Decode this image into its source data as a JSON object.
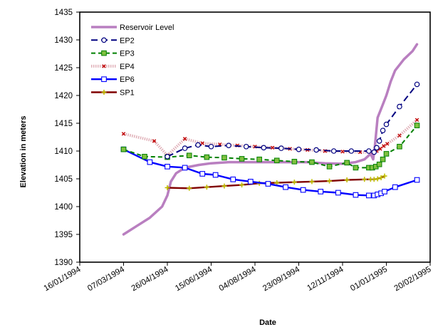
{
  "chart_data": {
    "type": "line",
    "xlabel": "Date",
    "ylabel": "Elevation in meters",
    "ylim": [
      1390,
      1435
    ],
    "y_ticks": [
      "1390",
      "1395",
      "1400",
      "1405",
      "1410",
      "1415",
      "1420",
      "1425",
      "1430",
      "1435"
    ],
    "xlim": [
      "1994-01-16",
      "1995-02-20"
    ],
    "x_ticks": [
      "16/01/1994",
      "07/03/1994",
      "26/04/1994",
      "15/06/1994",
      "04/08/1994",
      "23/09/1994",
      "12/11/1994",
      "01/01/1995",
      "20/02/1995"
    ],
    "grid": false,
    "legend_position": "top-left inside",
    "series": [
      {
        "name": "Reservoir Level",
        "color": "#b97fc0",
        "style": "thick-solid",
        "marker": "none",
        "points": [
          [
            "1994-03-07",
            1395.0
          ],
          [
            "1994-03-22",
            1396.5
          ],
          [
            "1994-04-06",
            1398.0
          ],
          [
            "1994-04-20",
            1400.0
          ],
          [
            "1994-04-26",
            1402.0
          ],
          [
            "1994-04-30",
            1404.5
          ],
          [
            "1994-05-06",
            1406.0
          ],
          [
            "1994-05-16",
            1407.0
          ],
          [
            "1994-06-01",
            1407.5
          ],
          [
            "1994-06-15",
            1407.8
          ],
          [
            "1994-07-05",
            1408.0
          ],
          [
            "1994-08-04",
            1408.0
          ],
          [
            "1994-09-03",
            1408.0
          ],
          [
            "1994-10-03",
            1408.0
          ],
          [
            "1994-10-23",
            1407.8
          ],
          [
            "1994-11-12",
            1407.7
          ],
          [
            "1994-11-27",
            1408.0
          ],
          [
            "1994-12-07",
            1408.5
          ],
          [
            "1994-12-14",
            1409.5
          ],
          [
            "1994-12-17",
            1408.5
          ],
          [
            "1994-12-19",
            1411.0
          ],
          [
            "1994-12-22",
            1416.0
          ],
          [
            "1994-12-27",
            1418.0
          ],
          [
            "1995-01-01",
            1420.0
          ],
          [
            "1995-01-06",
            1422.5
          ],
          [
            "1995-01-11",
            1424.5
          ],
          [
            "1995-01-21",
            1426.5
          ],
          [
            "1995-01-31",
            1428.0
          ],
          [
            "1995-02-05",
            1429.2
          ]
        ]
      },
      {
        "name": "EP2",
        "color": "#000080",
        "style": "long-dash",
        "marker": "open-circle",
        "points": [
          [
            "1994-04-26",
            1409.0
          ],
          [
            "1994-05-16",
            1410.5
          ],
          [
            "1994-05-31",
            1411.1
          ],
          [
            "1994-06-15",
            1410.8
          ],
          [
            "1994-07-05",
            1411.0
          ],
          [
            "1994-07-25",
            1410.8
          ],
          [
            "1994-08-14",
            1410.6
          ],
          [
            "1994-09-03",
            1410.5
          ],
          [
            "1994-09-23",
            1410.3
          ],
          [
            "1994-10-13",
            1410.2
          ],
          [
            "1994-11-02",
            1410.0
          ],
          [
            "1994-11-22",
            1410.0
          ],
          [
            "1994-12-12",
            1410.0
          ],
          [
            "1994-12-18",
            1409.8
          ],
          [
            "1994-12-21",
            1410.6
          ],
          [
            "1994-12-24",
            1411.8
          ],
          [
            "1994-12-28",
            1413.7
          ],
          [
            "1995-01-01",
            1414.8
          ],
          [
            "1995-01-16",
            1418.0
          ],
          [
            "1995-02-05",
            1422.0
          ]
        ]
      },
      {
        "name": "EP3",
        "color": "#008000",
        "style": "dash",
        "marker": "filled-square",
        "marker_color": "#80c040",
        "points": [
          [
            "1994-03-07",
            1410.3
          ],
          [
            "1994-03-31",
            1409.0
          ],
          [
            "1994-04-26",
            1408.9
          ],
          [
            "1994-05-21",
            1409.2
          ],
          [
            "1994-06-10",
            1408.9
          ],
          [
            "1994-06-30",
            1408.8
          ],
          [
            "1994-07-20",
            1408.6
          ],
          [
            "1994-08-09",
            1408.5
          ],
          [
            "1994-08-29",
            1408.3
          ],
          [
            "1994-09-18",
            1408.1
          ],
          [
            "1994-10-08",
            1408.0
          ],
          [
            "1994-10-28",
            1407.2
          ],
          [
            "1994-11-17",
            1407.9
          ],
          [
            "1994-11-27",
            1407.0
          ],
          [
            "1994-12-12",
            1407.0
          ],
          [
            "1994-12-16",
            1407.0
          ],
          [
            "1994-12-20",
            1407.2
          ],
          [
            "1994-12-24",
            1407.6
          ],
          [
            "1994-12-28",
            1408.5
          ],
          [
            "1995-01-01",
            1409.5
          ],
          [
            "1995-01-16",
            1410.8
          ],
          [
            "1995-02-05",
            1414.6
          ]
        ]
      },
      {
        "name": "EP4",
        "color": "#e0b0b8",
        "style": "thick-dotted",
        "marker": "x",
        "marker_color": "#c00000",
        "points": [
          [
            "1994-03-07",
            1413.1
          ],
          [
            "1994-04-11",
            1411.8
          ],
          [
            "1994-04-26",
            1409.2
          ],
          [
            "1994-05-16",
            1412.2
          ],
          [
            "1994-06-05",
            1411.4
          ],
          [
            "1994-06-25",
            1411.2
          ],
          [
            "1994-07-15",
            1411.0
          ],
          [
            "1994-08-04",
            1410.8
          ],
          [
            "1994-08-24",
            1410.6
          ],
          [
            "1994-09-13",
            1410.4
          ],
          [
            "1994-10-03",
            1410.2
          ],
          [
            "1994-10-23",
            1410.0
          ],
          [
            "1994-11-12",
            1409.9
          ],
          [
            "1994-12-02",
            1409.8
          ],
          [
            "1994-12-17",
            1409.8
          ],
          [
            "1994-12-21",
            1410.0
          ],
          [
            "1994-12-25",
            1410.4
          ],
          [
            "1994-12-29",
            1410.9
          ],
          [
            "1995-01-02",
            1411.3
          ],
          [
            "1995-01-16",
            1412.8
          ],
          [
            "1995-02-05",
            1415.6
          ]
        ]
      },
      {
        "name": "EP6",
        "color": "#0000ff",
        "style": "thick-solid",
        "marker": "open-square",
        "points": [
          [
            "1994-03-07",
            1410.3
          ],
          [
            "1994-04-06",
            1408.0
          ],
          [
            "1994-04-26",
            1407.2
          ],
          [
            "1994-05-16",
            1407.0
          ],
          [
            "1994-06-05",
            1405.9
          ],
          [
            "1994-06-20",
            1405.7
          ],
          [
            "1994-07-10",
            1404.9
          ],
          [
            "1994-07-30",
            1404.5
          ],
          [
            "1994-08-19",
            1404.1
          ],
          [
            "1994-09-08",
            1403.5
          ],
          [
            "1994-09-28",
            1403.0
          ],
          [
            "1994-10-18",
            1402.7
          ],
          [
            "1994-11-07",
            1402.5
          ],
          [
            "1994-11-27",
            1402.1
          ],
          [
            "1994-12-12",
            1402.0
          ],
          [
            "1994-12-18",
            1402.0
          ],
          [
            "1994-12-22",
            1402.2
          ],
          [
            "1994-12-26",
            1402.4
          ],
          [
            "1994-12-30",
            1402.7
          ],
          [
            "1995-01-11",
            1403.5
          ],
          [
            "1995-02-05",
            1404.8
          ]
        ]
      },
      {
        "name": "SP1",
        "color": "#800000",
        "style": "thick-solid",
        "marker": "plus",
        "marker_color": "#c0c000",
        "points": [
          [
            "1994-04-26",
            1403.4
          ],
          [
            "1994-05-21",
            1403.3
          ],
          [
            "1994-06-10",
            1403.5
          ],
          [
            "1994-06-30",
            1403.7
          ],
          [
            "1994-07-20",
            1403.9
          ],
          [
            "1994-08-09",
            1404.2
          ],
          [
            "1994-08-29",
            1404.3
          ],
          [
            "1994-09-18",
            1404.4
          ],
          [
            "1994-10-08",
            1404.5
          ],
          [
            "1994-10-28",
            1404.6
          ],
          [
            "1994-11-17",
            1404.8
          ],
          [
            "1994-12-07",
            1404.9
          ],
          [
            "1994-12-14",
            1404.9
          ],
          [
            "1994-12-18",
            1404.9
          ],
          [
            "1994-12-22",
            1405.0
          ],
          [
            "1994-12-26",
            1405.2
          ],
          [
            "1994-12-30",
            1405.5
          ]
        ]
      }
    ]
  }
}
